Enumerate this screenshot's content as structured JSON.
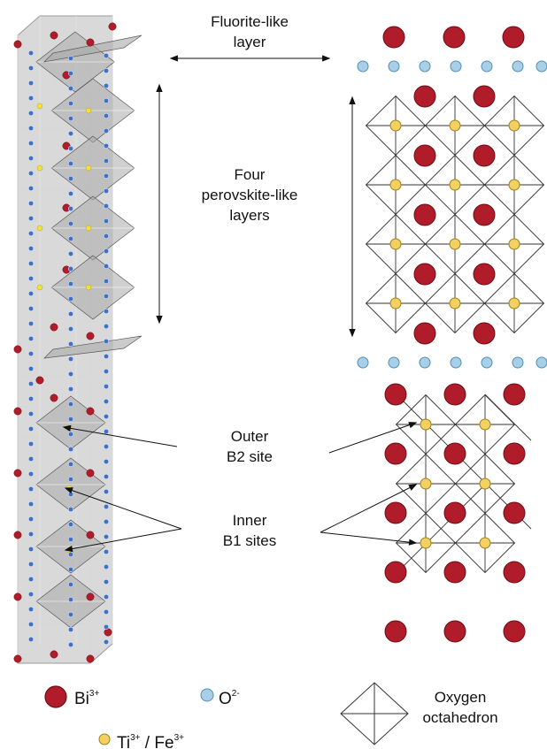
{
  "colors": {
    "bi": "#b01c2a",
    "bi_stroke": "#6e0c14",
    "o": "#a9cfe6",
    "o_stroke": "#4f8fb8",
    "o_small": "#3f72c6",
    "ti": "#f3d062",
    "ti_stroke": "#9e7f1c",
    "octa_fill": "#a9a9a9",
    "octa_stroke": "#5a5a5a",
    "cell": "#d6d6d6"
  },
  "labels": {
    "fluorite": [
      "Fluorite-like",
      "layer"
    ],
    "perovskite": [
      "Four",
      "perovskite-like",
      "layers"
    ],
    "outer": [
      "Outer",
      "B2 site"
    ],
    "inner": [
      "Inner",
      "B1 sites"
    ]
  },
  "legend": {
    "bi": {
      "base": "Bi",
      "charge": "3+"
    },
    "o": {
      "base": "O",
      "charge": "2-"
    },
    "ti": {
      "base1": "Ti",
      "charge1": "3+",
      "sep": " / ",
      "base2": "Fe",
      "charge2": "3+"
    },
    "octahedron": [
      "Oxygen",
      "octahedron"
    ]
  }
}
